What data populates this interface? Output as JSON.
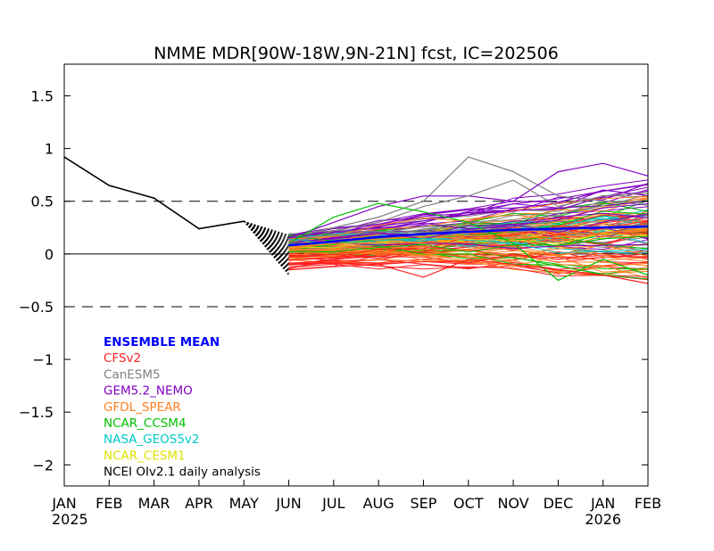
{
  "chart_data": {
    "type": "line",
    "title": "NMME MDR[90W-18W,9N-21N] fcst, IC=202506",
    "xlabel": "",
    "ylabel": "",
    "x_categories": [
      "JAN",
      "FEB",
      "MAR",
      "APR",
      "MAY",
      "JUN",
      "JUL",
      "AUG",
      "SEP",
      "OCT",
      "NOV",
      "DEC",
      "JAN",
      "FEB"
    ],
    "year_labels": [
      {
        "index": 0,
        "label": "2025"
      },
      {
        "index": 12,
        "label": "2026"
      }
    ],
    "ylim": [
      -2.2,
      1.8
    ],
    "yticks": [
      -2,
      -1.5,
      -1,
      -0.5,
      0,
      0.5,
      1,
      1.5
    ],
    "ytick_labels": [
      "−2",
      "−1.5",
      "−1",
      "−0.5",
      "0",
      "0.5",
      "1",
      "1.5"
    ],
    "reference_lines": [
      {
        "y": 0.5,
        "style": "dashed"
      },
      {
        "y": 0,
        "style": "solid"
      },
      {
        "y": -0.5,
        "style": "dashed"
      }
    ],
    "grid": false,
    "legend_position": "bottom-left",
    "legend": [
      {
        "name": "ENSEMBLE MEAN",
        "color": "#0000ff"
      },
      {
        "name": "CFSv2",
        "color": "#ff2020"
      },
      {
        "name": "CanESM5",
        "color": "#808080"
      },
      {
        "name": "GEM5.2_NEMO",
        "color": "#8000c0"
      },
      {
        "name": "GFDL_SPEAR",
        "color": "#ff7f20"
      },
      {
        "name": "NCAR_CCSM4",
        "color": "#00c000"
      },
      {
        "name": "NASA_GEOS5v2",
        "color": "#00c8c8"
      },
      {
        "name": "NCAR_CESM1",
        "color": "#e0e000"
      },
      {
        "name": "NCEI OIv2.1 daily analysis",
        "color": "#000000"
      }
    ],
    "observed": {
      "name": "NCEI OIv2.1 daily analysis",
      "x_index": [
        0,
        1,
        2,
        3,
        4
      ],
      "values": [
        0.92,
        0.65,
        0.53,
        0.24,
        0.31
      ]
    },
    "ensemble_mean": {
      "name": "ENSEMBLE MEAN",
      "x_index": [
        5,
        6,
        7,
        8,
        9,
        10,
        11,
        12,
        13
      ],
      "values": [
        0.08,
        0.12,
        0.16,
        0.19,
        0.21,
        0.23,
        0.24,
        0.25,
        0.26
      ]
    },
    "model_plumes": [
      {
        "model": "CFSv2",
        "color": "#ff2020",
        "members": 24,
        "start_range": [
          -0.18,
          0.05
        ],
        "end_range": [
          -0.3,
          0.45
        ]
      },
      {
        "model": "CanESM5",
        "color": "#808080",
        "members": 20,
        "start_range": [
          0.0,
          0.2
        ],
        "end_range": [
          0.0,
          0.58
        ]
      },
      {
        "model": "GEM5.2_NEMO",
        "color": "#8000c0",
        "members": 20,
        "start_range": [
          0.05,
          0.2
        ],
        "end_range": [
          0.05,
          0.75
        ]
      },
      {
        "model": "GFDL_SPEAR",
        "color": "#ff7f20",
        "members": 30,
        "start_range": [
          -0.1,
          0.15
        ],
        "end_range": [
          -0.2,
          0.6
        ]
      },
      {
        "model": "NCAR_CCSM4",
        "color": "#00c000",
        "members": 10,
        "start_range": [
          0.0,
          0.2
        ],
        "end_range": [
          -0.2,
          0.5
        ]
      },
      {
        "model": "NASA_GEOS5v2",
        "color": "#00c8c8",
        "members": 10,
        "start_range": [
          0.0,
          0.18
        ],
        "end_range": [
          0.0,
          0.45
        ]
      },
      {
        "model": "NCAR_CESM1",
        "color": "#e0e000",
        "members": 10,
        "start_range": [
          0.0,
          0.15
        ],
        "end_range": [
          0.1,
          0.4
        ]
      }
    ],
    "highlight_members": [
      {
        "model": "CanESM5",
        "color": "#808080",
        "values": [
          0.15,
          0.25,
          0.35,
          0.5,
          0.92,
          0.78,
          0.55,
          0.5,
          0.5
        ]
      },
      {
        "model": "GEM5.2_NEMO",
        "color": "#8000c0",
        "values": [
          0.15,
          0.3,
          0.45,
          0.55,
          0.55,
          0.5,
          0.78,
          0.86,
          0.74
        ]
      },
      {
        "model": "CanESM5",
        "color": "#808080",
        "values": [
          0.1,
          0.22,
          0.3,
          0.45,
          0.55,
          0.7,
          0.45,
          0.55,
          0.58
        ]
      },
      {
        "model": "NCAR_CCSM4",
        "color": "#00c000",
        "values": [
          0.1,
          0.35,
          0.48,
          0.4,
          0.3,
          0.1,
          -0.25,
          -0.05,
          -0.2
        ]
      },
      {
        "model": "CFSv2",
        "color": "#ff2020",
        "values": [
          -0.15,
          -0.12,
          -0.1,
          -0.22,
          -0.05,
          -0.1,
          -0.15,
          -0.2,
          -0.28
        ]
      }
    ]
  }
}
